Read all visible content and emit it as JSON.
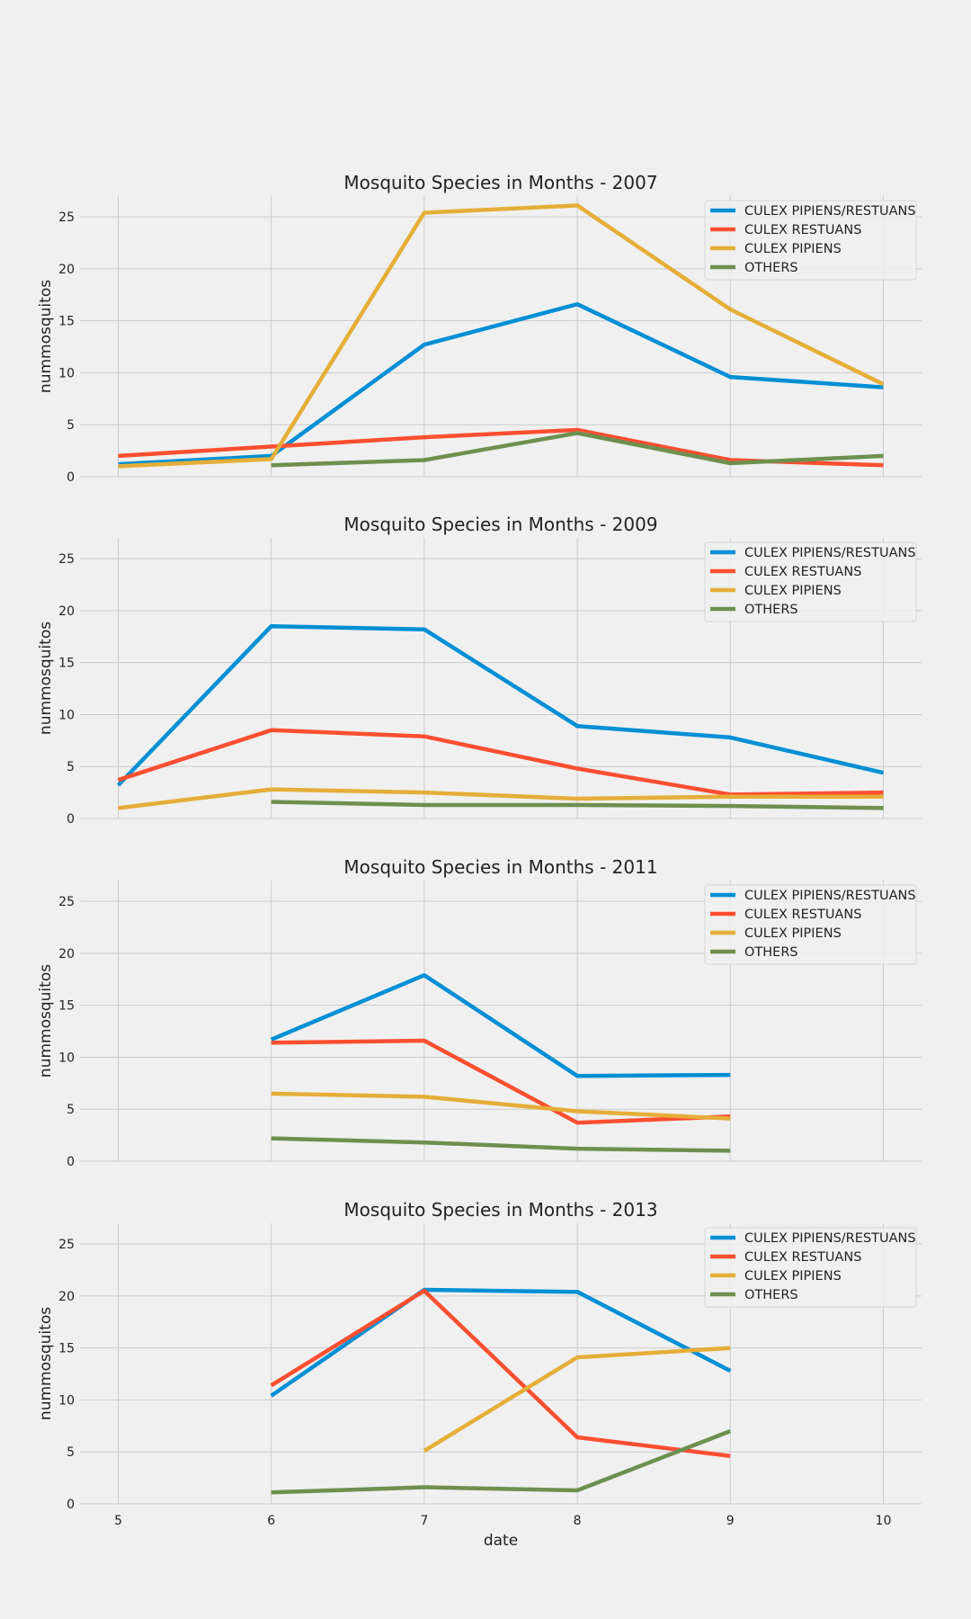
{
  "chart_data": [
    {
      "type": "line",
      "title": "Mosquito Species in Months - 2007",
      "xlabel": "",
      "ylabel": "nummosquitos",
      "xlim": [
        4.75,
        10.25
      ],
      "ylim": [
        0,
        27
      ],
      "x_ticks": [
        5,
        6,
        7,
        8,
        9,
        10
      ],
      "y_ticks": [
        0,
        5,
        10,
        15,
        20,
        25
      ],
      "grid": true,
      "legend_position": "top-right",
      "series": [
        {
          "name": "CULEX PIPIENS/RESTUANS",
          "color": "#008fd5",
          "x": [
            5,
            6,
            7,
            8,
            9,
            10
          ],
          "values": [
            1.2,
            2.0,
            12.7,
            16.6,
            9.6,
            8.6
          ]
        },
        {
          "name": "CULEX RESTUANS",
          "color": "#fc4f30",
          "x": [
            5,
            6,
            7,
            8,
            9,
            10
          ],
          "values": [
            2.0,
            2.9,
            3.8,
            4.5,
            1.6,
            1.1
          ]
        },
        {
          "name": "CULEX PIPIENS",
          "color": "#e5ae38",
          "x": [
            5,
            6,
            7,
            8,
            9,
            10
          ],
          "values": [
            1.0,
            1.7,
            25.4,
            26.1,
            16.1,
            8.9
          ]
        },
        {
          "name": "OTHERS",
          "color": "#6d904f",
          "x": [
            6,
            7,
            8,
            9,
            10
          ],
          "values": [
            1.1,
            1.6,
            4.2,
            1.3,
            2.0
          ]
        }
      ]
    },
    {
      "type": "line",
      "title": "Mosquito Species in Months - 2009",
      "xlabel": "",
      "ylabel": "nummosquitos",
      "xlim": [
        4.75,
        10.25
      ],
      "ylim": [
        0,
        27
      ],
      "x_ticks": [
        5,
        6,
        7,
        8,
        9,
        10
      ],
      "y_ticks": [
        0,
        5,
        10,
        15,
        20,
        25
      ],
      "grid": true,
      "legend_position": "top-right",
      "series": [
        {
          "name": "CULEX PIPIENS/RESTUANS",
          "color": "#008fd5",
          "x": [
            5,
            6,
            7,
            8,
            9,
            10
          ],
          "values": [
            3.2,
            18.5,
            18.2,
            8.9,
            7.8,
            4.4
          ]
        },
        {
          "name": "CULEX RESTUANS",
          "color": "#fc4f30",
          "x": [
            5,
            6,
            7,
            8,
            9,
            10
          ],
          "values": [
            3.7,
            8.5,
            7.9,
            4.8,
            2.3,
            2.5
          ]
        },
        {
          "name": "CULEX PIPIENS",
          "color": "#e5ae38",
          "x": [
            5,
            6,
            7,
            8,
            9,
            10
          ],
          "values": [
            1.0,
            2.8,
            2.5,
            1.9,
            2.1,
            2.1
          ]
        },
        {
          "name": "OTHERS",
          "color": "#6d904f",
          "x": [
            6,
            7,
            8,
            9,
            10
          ],
          "values": [
            1.6,
            1.3,
            1.3,
            1.2,
            1.0
          ]
        }
      ]
    },
    {
      "type": "line",
      "title": "Mosquito Species in Months - 2011",
      "xlabel": "",
      "ylabel": "nummosquitos",
      "xlim": [
        4.75,
        10.25
      ],
      "ylim": [
        0,
        27
      ],
      "x_ticks": [
        5,
        6,
        7,
        8,
        9,
        10
      ],
      "y_ticks": [
        0,
        5,
        10,
        15,
        20,
        25
      ],
      "grid": true,
      "legend_position": "top-right",
      "series": [
        {
          "name": "CULEX PIPIENS/RESTUANS",
          "color": "#008fd5",
          "x": [
            6,
            7,
            8,
            9
          ],
          "values": [
            11.7,
            17.9,
            8.2,
            8.3
          ]
        },
        {
          "name": "CULEX RESTUANS",
          "color": "#fc4f30",
          "x": [
            6,
            7,
            8,
            9
          ],
          "values": [
            11.4,
            11.6,
            3.7,
            4.3
          ]
        },
        {
          "name": "CULEX PIPIENS",
          "color": "#e5ae38",
          "x": [
            6,
            7,
            8,
            9
          ],
          "values": [
            6.5,
            6.2,
            4.8,
            4.1
          ]
        },
        {
          "name": "OTHERS",
          "color": "#6d904f",
          "x": [
            6,
            7,
            8,
            9
          ],
          "values": [
            2.2,
            1.8,
            1.2,
            1.0
          ]
        }
      ]
    },
    {
      "type": "line",
      "title": "Mosquito Species in Months - 2013",
      "xlabel": "date",
      "ylabel": "nummosquitos",
      "xlim": [
        4.75,
        10.25
      ],
      "ylim": [
        0,
        27
      ],
      "x_ticks": [
        5,
        6,
        7,
        8,
        9,
        10
      ],
      "y_ticks": [
        0,
        5,
        10,
        15,
        20,
        25
      ],
      "grid": true,
      "legend_position": "top-right",
      "series": [
        {
          "name": "CULEX PIPIENS/RESTUANS",
          "color": "#008fd5",
          "x": [
            6,
            7,
            8,
            9
          ],
          "values": [
            10.4,
            20.6,
            20.4,
            12.8
          ]
        },
        {
          "name": "CULEX RESTUANS",
          "color": "#fc4f30",
          "x": [
            6,
            7,
            8,
            9
          ],
          "values": [
            11.4,
            20.5,
            6.4,
            4.6
          ]
        },
        {
          "name": "CULEX PIPIENS",
          "color": "#e5ae38",
          "x": [
            7,
            8,
            9
          ],
          "values": [
            5.1,
            14.1,
            15.0
          ]
        },
        {
          "name": "OTHERS",
          "color": "#6d904f",
          "x": [
            6,
            7,
            8,
            9
          ],
          "values": [
            1.1,
            1.6,
            1.3,
            7.0
          ]
        }
      ]
    }
  ]
}
